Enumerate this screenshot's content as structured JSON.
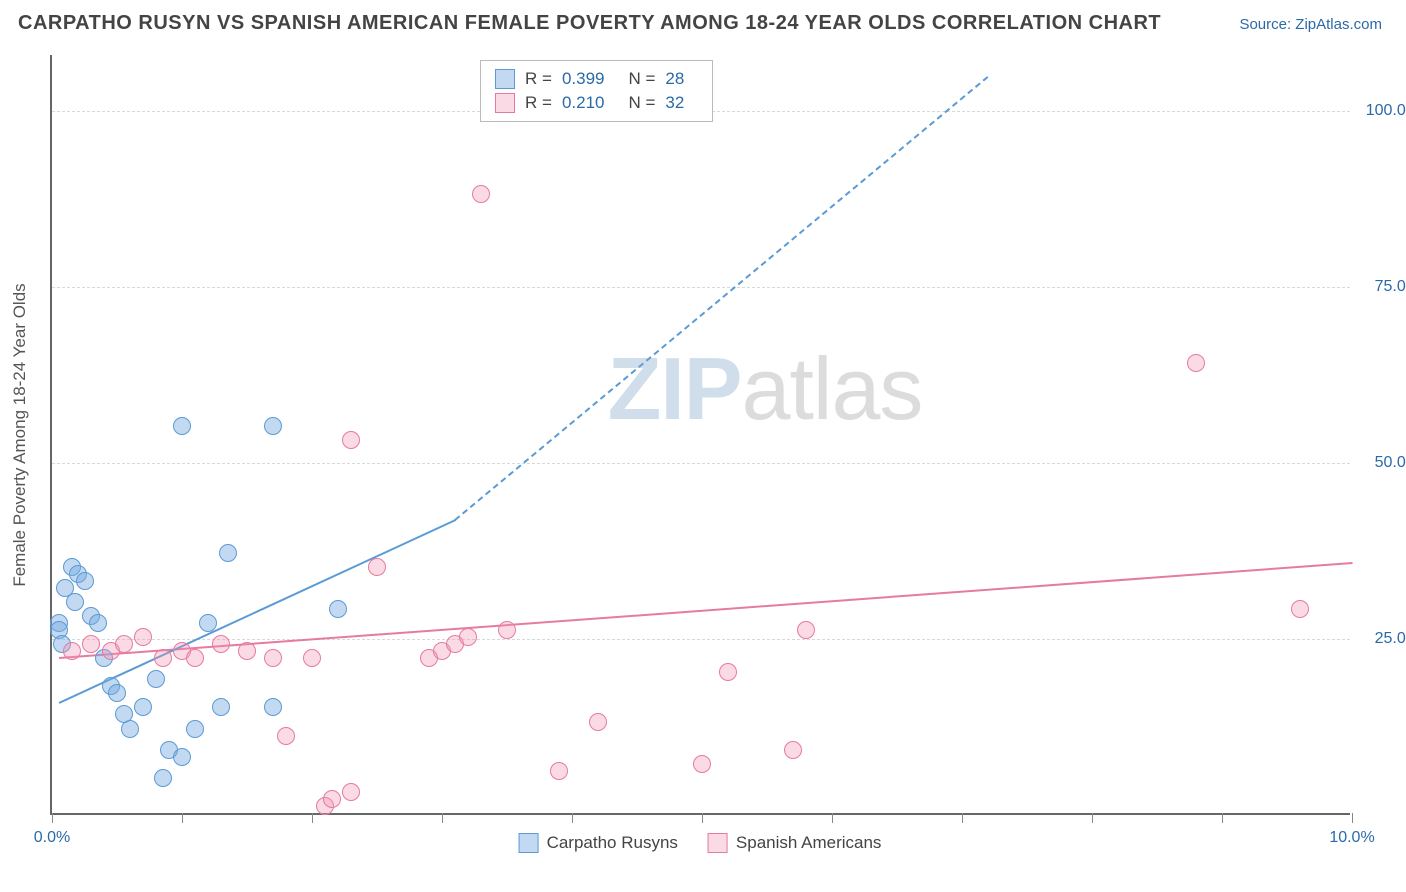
{
  "title": "CARPATHO RUSYN VS SPANISH AMERICAN FEMALE POVERTY AMONG 18-24 YEAR OLDS CORRELATION CHART",
  "source": "Source: ZipAtlas.com",
  "ylabel": "Female Poverty Among 18-24 Year Olds",
  "watermark": {
    "a": "ZIP",
    "b": "atlas"
  },
  "chart": {
    "type": "scatter",
    "xlim": [
      0,
      10
    ],
    "ylim": [
      0,
      108
    ],
    "x_ticks": [
      0,
      1,
      2,
      3,
      4,
      5,
      6,
      7,
      8,
      9,
      10
    ],
    "x_tick_labels": {
      "0": "0.0%",
      "10": "10.0%"
    },
    "y_grid": [
      25,
      50,
      75,
      100
    ],
    "y_tick_labels": {
      "25": "25.0%",
      "50": "50.0%",
      "75": "75.0%",
      "100": "100.0%"
    },
    "background_color": "#ffffff",
    "grid_color": "#d8d8d8",
    "axis_color": "#666666",
    "label_color": "#2b6aa8"
  },
  "series": {
    "blue": {
      "label": "Carpatho Rusyns",
      "fill": "rgba(120,170,225,0.45)",
      "stroke": "#5a9bd5",
      "r_label": "R =",
      "r_value": "0.399",
      "n_label": "N =",
      "n_value": "28",
      "trend": {
        "x1": 0.05,
        "y1": 16,
        "x2": 3.1,
        "y2": 42,
        "dashed_after_x": 3.1,
        "x3": 7.2,
        "y3": 105
      },
      "points": [
        [
          0.05,
          27
        ],
        [
          0.05,
          26
        ],
        [
          0.08,
          24
        ],
        [
          0.1,
          32
        ],
        [
          0.15,
          35
        ],
        [
          0.18,
          30
        ],
        [
          0.2,
          34
        ],
        [
          0.25,
          33
        ],
        [
          0.3,
          28
        ],
        [
          0.35,
          27
        ],
        [
          0.4,
          22
        ],
        [
          0.45,
          18
        ],
        [
          0.5,
          17
        ],
        [
          0.55,
          14
        ],
        [
          0.6,
          12
        ],
        [
          0.7,
          15
        ],
        [
          0.8,
          19
        ],
        [
          0.85,
          5
        ],
        [
          0.9,
          9
        ],
        [
          1.0,
          8
        ],
        [
          1.0,
          55
        ],
        [
          1.1,
          12
        ],
        [
          1.2,
          27
        ],
        [
          1.3,
          15
        ],
        [
          1.35,
          37
        ],
        [
          1.7,
          15
        ],
        [
          1.7,
          55
        ],
        [
          2.2,
          29
        ]
      ]
    },
    "pink": {
      "label": "Spanish Americans",
      "fill": "rgba(240,150,180,0.35)",
      "stroke": "#e77aa0",
      "r_label": "R =",
      "r_value": "0.210",
      "n_label": "N =",
      "n_value": "32",
      "trend": {
        "x1": 0.05,
        "y1": 22.5,
        "x2": 10,
        "y2": 36
      },
      "points": [
        [
          0.15,
          23
        ],
        [
          0.3,
          24
        ],
        [
          0.45,
          23
        ],
        [
          0.55,
          24
        ],
        [
          0.7,
          25
        ],
        [
          0.85,
          22
        ],
        [
          1.0,
          23
        ],
        [
          1.1,
          22
        ],
        [
          1.3,
          24
        ],
        [
          1.5,
          23
        ],
        [
          1.7,
          22
        ],
        [
          1.8,
          11
        ],
        [
          2.0,
          22
        ],
        [
          2.1,
          1
        ],
        [
          2.15,
          2
        ],
        [
          2.3,
          3
        ],
        [
          2.3,
          53
        ],
        [
          2.5,
          35
        ],
        [
          2.9,
          22
        ],
        [
          3.0,
          23
        ],
        [
          3.1,
          24
        ],
        [
          3.2,
          25
        ],
        [
          3.3,
          88
        ],
        [
          3.5,
          26
        ],
        [
          3.9,
          6
        ],
        [
          4.2,
          13
        ],
        [
          5.0,
          7
        ],
        [
          5.2,
          20
        ],
        [
          5.7,
          9
        ],
        [
          5.8,
          26
        ],
        [
          8.8,
          64
        ],
        [
          9.6,
          29
        ]
      ]
    }
  },
  "legend_bottom": [
    {
      "key": "blue",
      "label": "Carpatho Rusyns"
    },
    {
      "key": "pink",
      "label": "Spanish Americans"
    }
  ]
}
